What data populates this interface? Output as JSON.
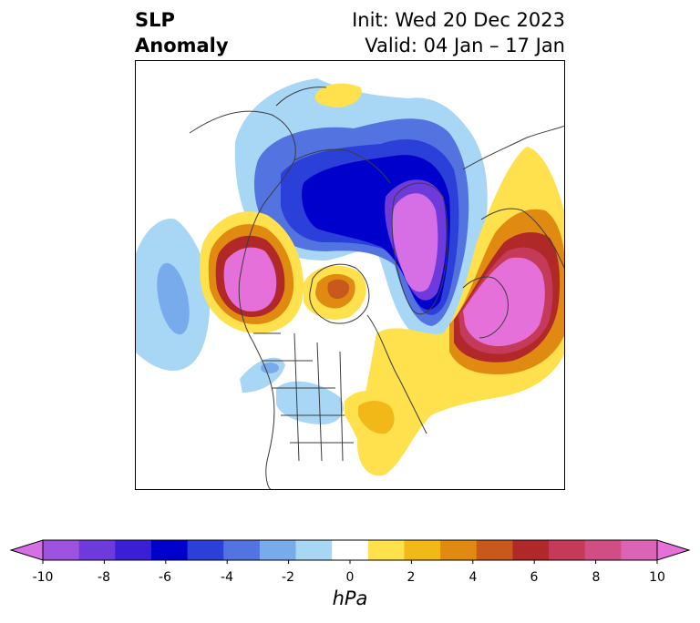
{
  "title": {
    "line1": "SLP",
    "line2": "Anomaly",
    "init": "Init: Wed 20 Dec 2023",
    "valid": "Valid: 04 Jan – 17 Jan"
  },
  "map": {
    "projection": "north-polar-stereographic",
    "region": "Northern Hemisphere (North America, Greenland, Eurasia, Arctic)"
  },
  "colorbar": {
    "unit": "hPa",
    "ticks": [
      "-10",
      "-8",
      "-6",
      "-4",
      "-2",
      "0",
      "2",
      "4",
      "6",
      "8",
      "10"
    ],
    "extend": "both",
    "colors": [
      "#d66ee6",
      "#9e52e0",
      "#6e3adb",
      "#3a1fd6",
      "#0000cc",
      "#2b3fd9",
      "#5273e0",
      "#78abeb",
      "#a8d6f5",
      "#ffffff",
      "#ffe04d",
      "#f2b818",
      "#e08a12",
      "#c8581b",
      "#b02828",
      "#c43a58",
      "#d14e84",
      "#db64b4",
      "#e670da"
    ]
  }
}
